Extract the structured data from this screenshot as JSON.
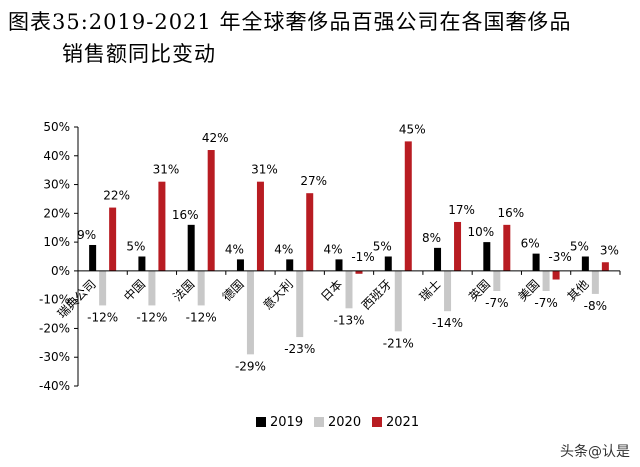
{
  "page_title": {
    "line1": "图表35:2019-2021 年全球奢侈品百强公司在各国奢侈品",
    "line2": "销售额同比变动"
  },
  "watermark": "头条@认是",
  "colors": {
    "2019": "#000000",
    "2020": "#c8c8c8",
    "2021": "#b81c22"
  },
  "chart_data": {
    "type": "bar",
    "categories": [
      "瑞典公司",
      "中国",
      "法国",
      "德国",
      "意大利",
      "日本",
      "西班牙",
      "瑞士",
      "英国",
      "美国",
      "其他"
    ],
    "series": [
      {
        "name": "2019",
        "values": [
          9,
          5,
          16,
          4,
          4,
          4,
          5,
          8,
          10,
          6,
          5
        ]
      },
      {
        "name": "2020",
        "values": [
          -12,
          -12,
          -12,
          -29,
          -23,
          -13,
          -21,
          -14,
          -7,
          -7,
          -8
        ]
      },
      {
        "name": "2021",
        "values": [
          22,
          31,
          42,
          31,
          27,
          -1,
          45,
          17,
          16,
          -3,
          3
        ]
      }
    ],
    "data_labels": [
      {
        "category": "瑞典公司",
        "series": "2019",
        "text": "9%"
      },
      {
        "category": "瑞典公司",
        "series": "2020",
        "text": "-12%"
      },
      {
        "category": "瑞典公司",
        "series": "2021",
        "text": "22%"
      },
      {
        "category": "中国",
        "series": "2019",
        "text": "5%"
      },
      {
        "category": "中国",
        "series": "2020",
        "text": "-12%"
      },
      {
        "category": "中国",
        "series": "2021",
        "text": "31%"
      },
      {
        "category": "法国",
        "series": "2019",
        "text": "16%"
      },
      {
        "category": "法国",
        "series": "2020",
        "text": "-12%"
      },
      {
        "category": "法国",
        "series": "2021",
        "text": "42%"
      },
      {
        "category": "德国",
        "series": "2019",
        "text": "4%"
      },
      {
        "category": "德国",
        "series": "2020",
        "text": "-29%"
      },
      {
        "category": "德国",
        "series": "2021",
        "text": "31%"
      },
      {
        "category": "意大利",
        "series": "2019",
        "text": "4%"
      },
      {
        "category": "意大利",
        "series": "2020",
        "text": "-23%"
      },
      {
        "category": "意大利",
        "series": "2021",
        "text": "27%"
      },
      {
        "category": "日本",
        "series": "2019",
        "text": "4%"
      },
      {
        "category": "日本",
        "series": "2020",
        "text": "-13%"
      },
      {
        "category": "日本",
        "series": "2021",
        "text": "-1%"
      },
      {
        "category": "西班牙",
        "series": "2019",
        "text": "5%"
      },
      {
        "category": "西班牙",
        "series": "2020",
        "text": "-21%"
      },
      {
        "category": "西班牙",
        "series": "2021",
        "text": "45%"
      },
      {
        "category": "瑞士",
        "series": "2019",
        "text": "8%"
      },
      {
        "category": "瑞士",
        "series": "2020",
        "text": "-14%"
      },
      {
        "category": "瑞士",
        "series": "2021",
        "text": "17%"
      },
      {
        "category": "英国",
        "series": "2019",
        "text": "10%"
      },
      {
        "category": "英国",
        "series": "2020",
        "text": "-7%"
      },
      {
        "category": "英国",
        "series": "2021",
        "text": "16%"
      },
      {
        "category": "美国",
        "series": "2019",
        "text": "6%"
      },
      {
        "category": "美国",
        "series": "2020",
        "text": "-7%"
      },
      {
        "category": "美国",
        "series": "2021",
        "text": "-3%"
      },
      {
        "category": "其他",
        "series": "2019",
        "text": "5%"
      },
      {
        "category": "其他",
        "series": "2020",
        "text": "-8%"
      },
      {
        "category": "其他",
        "series": "2021",
        "text": "3%"
      }
    ],
    "y_tick_labels": [
      "50%",
      "40%",
      "30%",
      "20%",
      "10%",
      "0%",
      "-10%",
      "-20%",
      "-30%",
      "-40%"
    ],
    "ylim": [
      -40,
      50
    ],
    "ytick_step": 10,
    "legend_position": "bottom",
    "grid": false
  }
}
